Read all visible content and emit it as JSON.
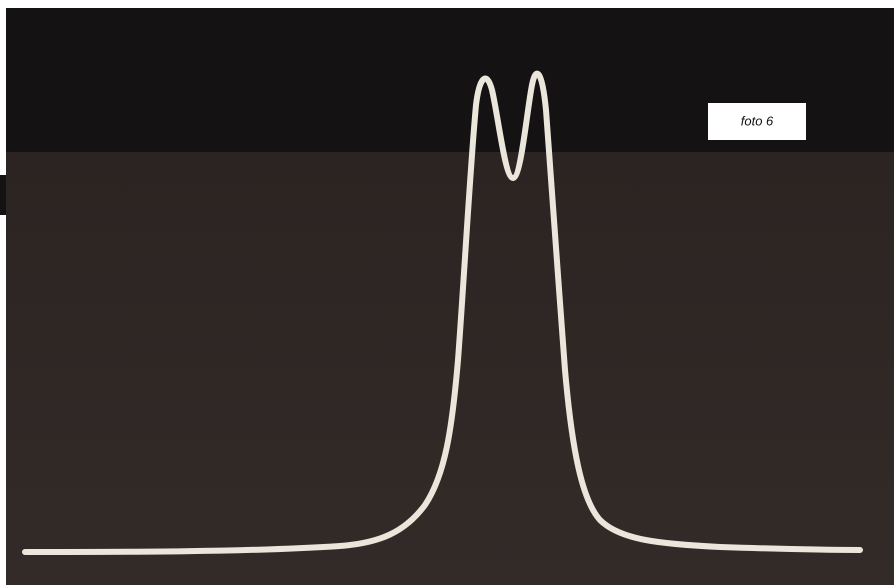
{
  "caption": {
    "label": "foto 6"
  }
}
